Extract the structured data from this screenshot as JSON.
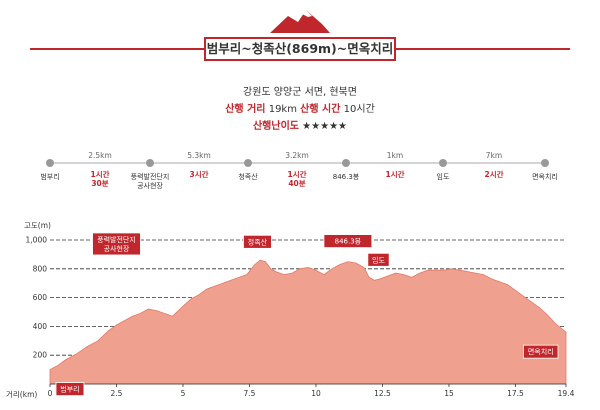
{
  "header": {
    "title": "범부리~청족산(869m)~면옥치리",
    "location": "강원도 양양군 서면, 현북면",
    "distance_label": "산행 거리",
    "distance_value": "19km",
    "time_label": "산행 시간",
    "time_value": "10시간",
    "difficulty_label": "산행난이도",
    "difficulty_stars": "★★★★★"
  },
  "route": {
    "points": [
      {
        "name": "범부리"
      },
      {
        "name": "풍력발전단지 공사현장"
      },
      {
        "name": "청족산"
      },
      {
        "name": "846.3봉"
      },
      {
        "name": "임도"
      },
      {
        "name": "면옥치리"
      }
    ],
    "segments": [
      {
        "distance": "2.5km",
        "time": "1시간 30분"
      },
      {
        "distance": "5.3km",
        "time": "3시간"
      },
      {
        "distance": "3.2km",
        "time": "1시간 40분"
      },
      {
        "distance": "1km",
        "time": "1시간"
      },
      {
        "distance": "7km",
        "time": "2시간"
      }
    ]
  },
  "colors": {
    "accent": "#c0272d",
    "profile_fill": "#f0a08e",
    "profile_edge": "#e07a66",
    "node": "#999999"
  },
  "chart_data": {
    "type": "area",
    "ylabel": "고도(m)",
    "xlabel": "거리(km)",
    "xlim": [
      0,
      19.4
    ],
    "ylim": [
      0,
      1000
    ],
    "x_ticks": [
      0,
      2.5,
      5,
      7.5,
      10,
      12.5,
      15,
      17.5,
      19.4
    ],
    "x_tick_labels": [
      "0",
      "2.5",
      "5",
      "7.5",
      "10",
      "12.5",
      "15",
      "17.5",
      "19.4"
    ],
    "y_ticks": [
      200,
      400,
      600,
      800,
      1000
    ],
    "y_tick_labels": [
      "200",
      "400",
      "600",
      "800",
      "1,000"
    ],
    "series": [
      {
        "x": [
          0,
          0.3,
          0.6,
          1.0,
          1.4,
          1.8,
          2.2,
          2.5,
          2.8,
          3.1,
          3.4,
          3.7,
          4.0,
          4.3,
          4.6,
          5.0,
          5.3,
          5.6,
          5.9,
          6.2,
          6.5,
          6.8,
          7.1,
          7.4,
          7.7,
          7.9,
          8.1,
          8.3,
          8.5,
          8.8,
          9.1,
          9.4,
          9.7,
          10.0,
          10.3,
          10.6,
          10.9,
          11.2,
          11.5,
          11.8,
          12.0,
          12.2,
          12.4,
          12.7,
          13.0,
          13.3,
          13.6,
          13.9,
          14.2,
          14.5,
          14.8,
          15.1,
          15.4,
          15.7,
          16.0,
          16.3,
          16.6,
          16.9,
          17.2,
          17.5,
          17.8,
          18.1,
          18.4,
          18.7,
          19.0,
          19.4
        ],
        "y": [
          100,
          130,
          170,
          210,
          260,
          300,
          370,
          410,
          440,
          470,
          490,
          520,
          510,
          490,
          470,
          540,
          590,
          620,
          660,
          680,
          700,
          720,
          740,
          760,
          830,
          860,
          850,
          800,
          780,
          760,
          770,
          800,
          810,
          790,
          760,
          800,
          830,
          850,
          840,
          810,
          740,
          720,
          730,
          750,
          770,
          760,
          740,
          770,
          790,
          790,
          790,
          800,
          790,
          780,
          770,
          760,
          730,
          710,
          690,
          650,
          610,
          570,
          530,
          480,
          420,
          360
        ]
      }
    ],
    "annotations": [
      {
        "label": "범부리",
        "x": 0
      },
      {
        "label": "풍력발전단지 공사현장",
        "x": 2.5
      },
      {
        "label": "청족산",
        "x": 7.8
      },
      {
        "label": "846.3봉",
        "x": 11.2
      },
      {
        "label": "임도",
        "x": 12.2
      },
      {
        "label": "면옥치리",
        "x": 19.4
      }
    ]
  }
}
